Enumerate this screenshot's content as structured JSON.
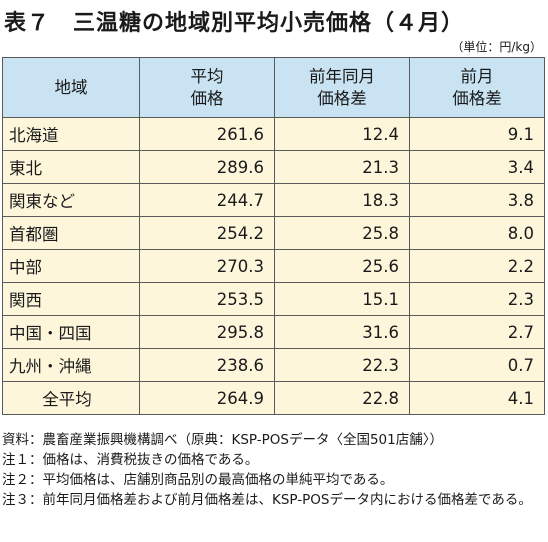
{
  "title": "表７　三温糖の地域別平均小売価格（４月）",
  "unit": "（単位：円/kg）",
  "table": {
    "headers": [
      {
        "line1": "地域",
        "line2": ""
      },
      {
        "line1": "平均",
        "line2": "価格"
      },
      {
        "line1": "前年同月",
        "line2": "価格差"
      },
      {
        "line1": "前月",
        "line2": "価格差"
      }
    ],
    "rows": [
      {
        "region": "北海道",
        "avg": "261.6",
        "yoy": "12.4",
        "mom": "9.1"
      },
      {
        "region": "東北",
        "avg": "289.6",
        "yoy": "21.3",
        "mom": "3.4"
      },
      {
        "region": "関東など",
        "avg": "244.7",
        "yoy": "18.3",
        "mom": "3.8"
      },
      {
        "region": "首都圏",
        "avg": "254.2",
        "yoy": "25.8",
        "mom": "8.0"
      },
      {
        "region": "中部",
        "avg": "270.3",
        "yoy": "25.6",
        "mom": "2.2"
      },
      {
        "region": "関西",
        "avg": "253.5",
        "yoy": "15.1",
        "mom": "2.3"
      },
      {
        "region": "中国・四国",
        "avg": "295.8",
        "yoy": "31.6",
        "mom": "2.7"
      },
      {
        "region": "九州・沖縄",
        "avg": "238.6",
        "yoy": "22.3",
        "mom": "0.7"
      }
    ],
    "total": {
      "region": "全平均",
      "avg": "264.9",
      "yoy": "22.8",
      "mom": "4.1"
    }
  },
  "notes": [
    {
      "label": "資料：",
      "text": "農畜産業振興機構調べ（原典：KSP-POSデータ〈全国501店舗〉）"
    },
    {
      "label": "注１：",
      "text": "価格は、消費税抜きの価格である。"
    },
    {
      "label": "注２：",
      "text": "平均価格は、店舗別商品別の最高価格の単純平均である。"
    },
    {
      "label": "注３：",
      "text": "前年同月価格差および前月価格差は、KSP-POSデータ内における価格差である。"
    }
  ]
}
